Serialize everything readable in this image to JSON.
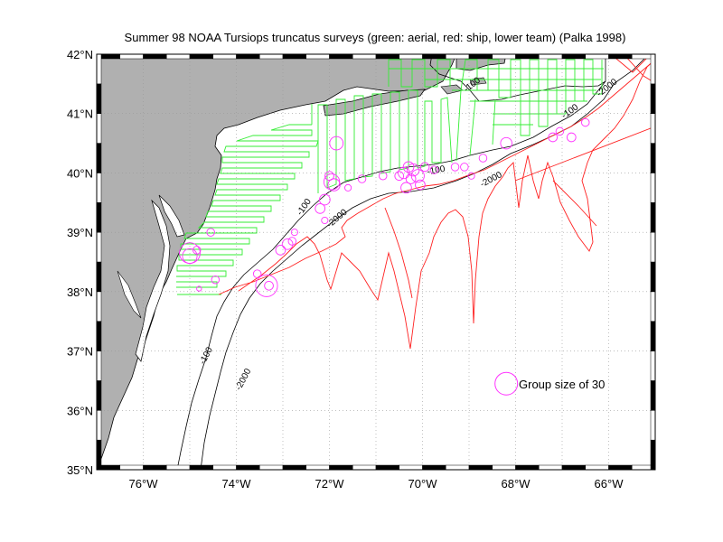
{
  "title": "Summer 98 NOAA Tursiops truncatus surveys (green: aerial, red: ship, lower team) (Palka 1998)",
  "colors": {
    "land": "#b0b0b0",
    "aerial": "#33ee33",
    "ship": "#ff2020",
    "sightings": "#ff33ff",
    "grid": "#999999"
  },
  "map": {
    "lon_range": [
      -77,
      -65
    ],
    "lat_range": [
      35,
      42
    ],
    "lon_ticks": [
      {
        "value": -76,
        "label": "76°W"
      },
      {
        "value": -74,
        "label": "74°W"
      },
      {
        "value": -72,
        "label": "72°W"
      },
      {
        "value": -70,
        "label": "70°W"
      },
      {
        "value": -68,
        "label": "68°W"
      },
      {
        "value": -66,
        "label": "66°W"
      }
    ],
    "lat_ticks": [
      {
        "value": 42,
        "label": "42°N"
      },
      {
        "value": 41,
        "label": "41°N"
      },
      {
        "value": 40,
        "label": "40°N"
      },
      {
        "value": 39,
        "label": "39°N"
      },
      {
        "value": 38,
        "label": "38°N"
      },
      {
        "value": 37,
        "label": "37°N"
      },
      {
        "value": 36,
        "label": "36°N"
      },
      {
        "value": 35,
        "label": "35°N"
      }
    ]
  },
  "contour_labels": [
    {
      "text": "-100",
      "lon": -68.9,
      "lat": 41.45,
      "angle": -38
    },
    {
      "text": "-2000",
      "lon": -66.0,
      "lat": 41.4,
      "angle": -38
    },
    {
      "text": "-100",
      "lon": -66.8,
      "lat": 41.0,
      "angle": -35
    },
    {
      "text": "-100",
      "lon": -69.7,
      "lat": 40.0,
      "angle": -10
    },
    {
      "text": "-2000",
      "lon": -68.5,
      "lat": 39.85,
      "angle": -28
    },
    {
      "text": "-100",
      "lon": -72.5,
      "lat": 39.4,
      "angle": -55
    },
    {
      "text": "-2000",
      "lon": -71.8,
      "lat": 39.2,
      "angle": -40
    },
    {
      "text": "-100",
      "lon": -74.6,
      "lat": 36.9,
      "angle": -62
    },
    {
      "text": "-2000",
      "lon": -73.8,
      "lat": 36.5,
      "angle": -62
    }
  ],
  "sightings": [
    {
      "lon": -75.0,
      "lat": 38.65,
      "size": 25
    },
    {
      "lon": -75.0,
      "lat": 38.6,
      "size": 12
    },
    {
      "lon": -74.85,
      "lat": 38.7,
      "size": 3
    },
    {
      "lon": -74.55,
      "lat": 39.0,
      "size": 3
    },
    {
      "lon": -74.45,
      "lat": 38.2,
      "size": 3
    },
    {
      "lon": -74.8,
      "lat": 38.05,
      "size": 1
    },
    {
      "lon": -73.55,
      "lat": 38.3,
      "size": 3
    },
    {
      "lon": -73.35,
      "lat": 38.1,
      "size": 28
    },
    {
      "lon": -73.3,
      "lat": 38.1,
      "size": 4
    },
    {
      "lon": -73.05,
      "lat": 38.7,
      "size": 5
    },
    {
      "lon": -72.9,
      "lat": 38.8,
      "size": 6
    },
    {
      "lon": -72.8,
      "lat": 38.85,
      "size": 3
    },
    {
      "lon": -72.75,
      "lat": 39.0,
      "size": 2
    },
    {
      "lon": -72.2,
      "lat": 39.4,
      "size": 5
    },
    {
      "lon": -72.1,
      "lat": 39.55,
      "size": 6
    },
    {
      "lon": -71.95,
      "lat": 39.85,
      "size": 14
    },
    {
      "lon": -71.9,
      "lat": 39.8,
      "size": 8
    },
    {
      "lon": -72.0,
      "lat": 39.95,
      "size": 4
    },
    {
      "lon": -71.85,
      "lat": 40.5,
      "size": 10
    },
    {
      "lon": -72.1,
      "lat": 39.2,
      "size": 2
    },
    {
      "lon": -70.85,
      "lat": 39.95,
      "size": 3
    },
    {
      "lon": -70.5,
      "lat": 39.95,
      "size": 4
    },
    {
      "lon": -70.4,
      "lat": 40.0,
      "size": 7
    },
    {
      "lon": -70.3,
      "lat": 40.1,
      "size": 6
    },
    {
      "lon": -70.25,
      "lat": 39.9,
      "size": 5
    },
    {
      "lon": -70.2,
      "lat": 40.05,
      "size": 8
    },
    {
      "lon": -70.1,
      "lat": 39.95,
      "size": 9
    },
    {
      "lon": -70.05,
      "lat": 39.8,
      "size": 5
    },
    {
      "lon": -69.95,
      "lat": 40.1,
      "size": 4
    },
    {
      "lon": -70.35,
      "lat": 39.75,
      "size": 6
    },
    {
      "lon": -69.75,
      "lat": 40.05,
      "size": 3
    },
    {
      "lon": -69.3,
      "lat": 40.1,
      "size": 3
    },
    {
      "lon": -69.1,
      "lat": 40.1,
      "size": 3
    },
    {
      "lon": -68.95,
      "lat": 39.95,
      "size": 2
    },
    {
      "lon": -68.7,
      "lat": 40.25,
      "size": 3
    },
    {
      "lon": -68.2,
      "lat": 40.5,
      "size": 7
    },
    {
      "lon": -67.2,
      "lat": 40.6,
      "size": 4
    },
    {
      "lon": -67.05,
      "lat": 40.7,
      "size": 3
    },
    {
      "lon": -66.8,
      "lat": 40.6,
      "size": 4
    },
    {
      "lon": -66.5,
      "lat": 40.85,
      "size": 3
    },
    {
      "lon": -71.6,
      "lat": 39.75,
      "size": 2
    },
    {
      "lon": -71.3,
      "lat": 39.9,
      "size": 3
    }
  ],
  "legend": {
    "label": "Group size of 30",
    "size": 30,
    "lon": -68.2,
    "lat": 36.45
  }
}
